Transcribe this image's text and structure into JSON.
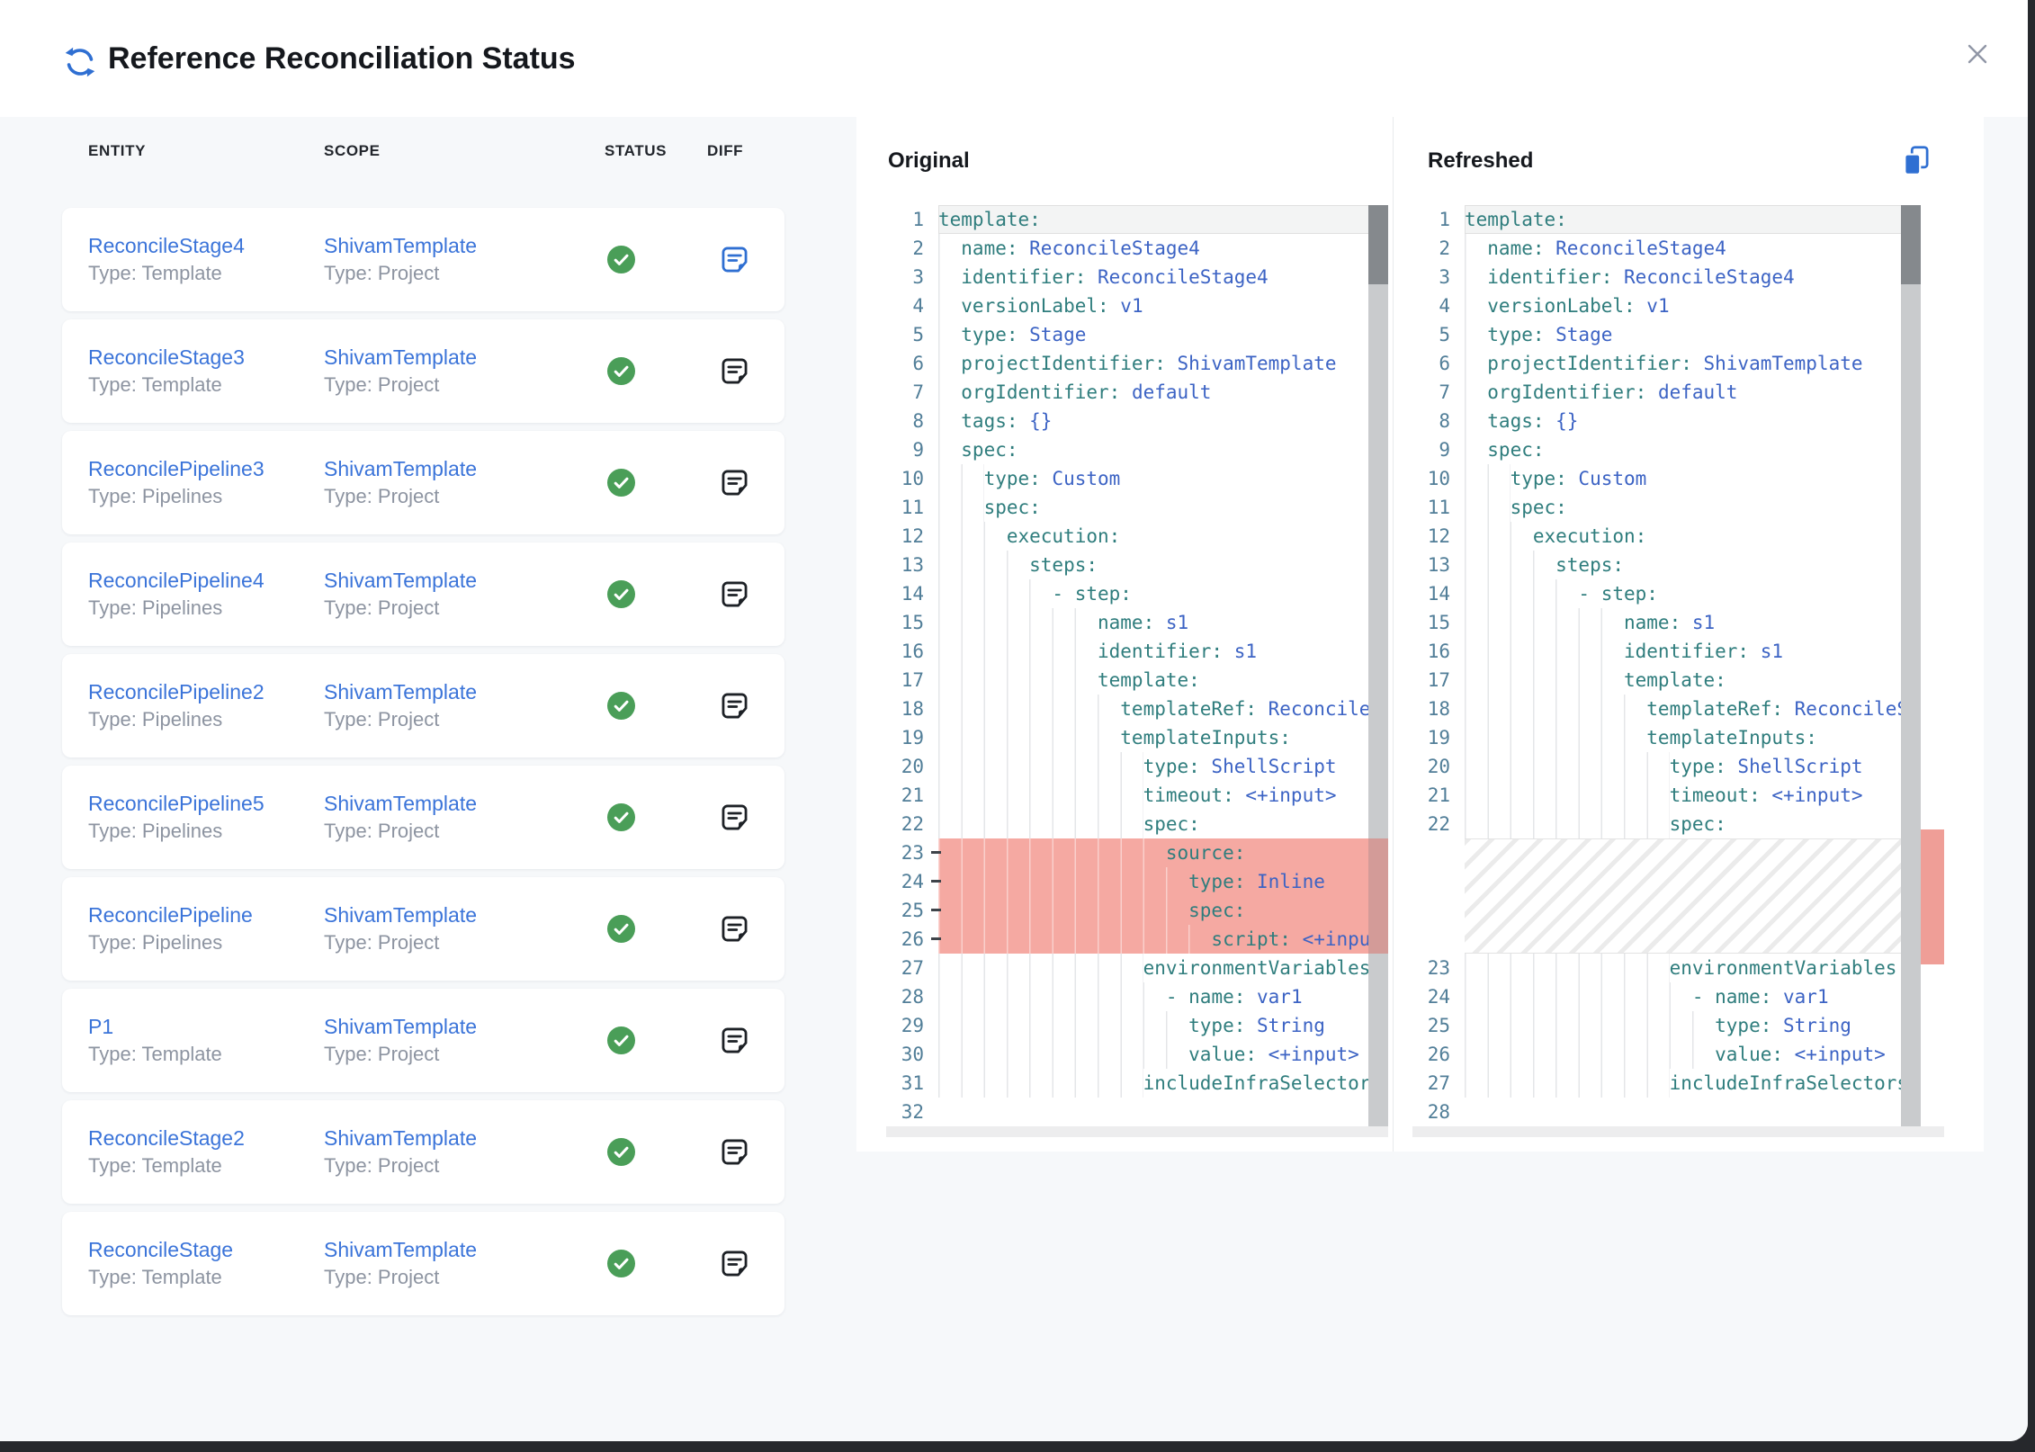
{
  "dialog": {
    "title": "Reference Reconciliation Status"
  },
  "icons": {
    "title_icon": "refresh-icon",
    "close": "close-icon",
    "status": "check-circle-icon",
    "diff": "note-icon",
    "copy": "copy-icon"
  },
  "colors": {
    "accent_blue": "#2f6fd2",
    "link_blue": "#3b74d9",
    "status_green": "#4a9e58",
    "removed_row_red": "#f5a9a2",
    "overview_marker_red": "#ef9e97",
    "yaml_key_teal": "#2f7d7d",
    "yaml_value_blue": "#3c63c4",
    "line_number": "#517e98"
  },
  "table": {
    "columns": [
      "ENTITY",
      "SCOPE",
      "STATUS",
      "DIFF"
    ],
    "rows": [
      {
        "entity": "ReconcileStage4",
        "entity_type": "Type: Template",
        "scope": "ShivamTemplate",
        "scope_type": "Type: Project",
        "status": "success",
        "diff_highlight": true
      },
      {
        "entity": "ReconcileStage3",
        "entity_type": "Type: Template",
        "scope": "ShivamTemplate",
        "scope_type": "Type: Project",
        "status": "success",
        "diff_highlight": false
      },
      {
        "entity": "ReconcilePipeline3",
        "entity_type": "Type: Pipelines",
        "scope": "ShivamTemplate",
        "scope_type": "Type: Project",
        "status": "success",
        "diff_highlight": false
      },
      {
        "entity": "ReconcilePipeline4",
        "entity_type": "Type: Pipelines",
        "scope": "ShivamTemplate",
        "scope_type": "Type: Project",
        "status": "success",
        "diff_highlight": false
      },
      {
        "entity": "ReconcilePipeline2",
        "entity_type": "Type: Pipelines",
        "scope": "ShivamTemplate",
        "scope_type": "Type: Project",
        "status": "success",
        "diff_highlight": false
      },
      {
        "entity": "ReconcilePipeline5",
        "entity_type": "Type: Pipelines",
        "scope": "ShivamTemplate",
        "scope_type": "Type: Project",
        "status": "success",
        "diff_highlight": false
      },
      {
        "entity": "ReconcilePipeline",
        "entity_type": "Type: Pipelines",
        "scope": "ShivamTemplate",
        "scope_type": "Type: Project",
        "status": "success",
        "diff_highlight": false
      },
      {
        "entity": "P1",
        "entity_type": "Type: Template",
        "scope": "ShivamTemplate",
        "scope_type": "Type: Project",
        "status": "success",
        "diff_highlight": false
      },
      {
        "entity": "ReconcileStage2",
        "entity_type": "Type: Template",
        "scope": "ShivamTemplate",
        "scope_type": "Type: Project",
        "status": "success",
        "diff_highlight": false
      },
      {
        "entity": "ReconcileStage",
        "entity_type": "Type: Template",
        "scope": "ShivamTemplate",
        "scope_type": "Type: Project",
        "status": "success",
        "diff_highlight": false
      }
    ]
  },
  "diff": {
    "original_title": "Original",
    "refreshed_title": "Refreshed",
    "original_lines": [
      {
        "n": 1,
        "i": 0,
        "k": "template"
      },
      {
        "n": 2,
        "i": 2,
        "k": "name",
        "v": "ReconcileStage4"
      },
      {
        "n": 3,
        "i": 2,
        "k": "identifier",
        "v": "ReconcileStage4"
      },
      {
        "n": 4,
        "i": 2,
        "k": "versionLabel",
        "v": "v1"
      },
      {
        "n": 5,
        "i": 2,
        "k": "type",
        "v": "Stage"
      },
      {
        "n": 6,
        "i": 2,
        "k": "projectIdentifier",
        "v": "ShivamTemplate"
      },
      {
        "n": 7,
        "i": 2,
        "k": "orgIdentifier",
        "v": "default"
      },
      {
        "n": 8,
        "i": 2,
        "k": "tags",
        "v": "{}"
      },
      {
        "n": 9,
        "i": 2,
        "k": "spec"
      },
      {
        "n": 10,
        "i": 4,
        "k": "type",
        "v": "Custom"
      },
      {
        "n": 11,
        "i": 4,
        "k": "spec"
      },
      {
        "n": 12,
        "i": 6,
        "k": "execution"
      },
      {
        "n": 13,
        "i": 8,
        "k": "steps"
      },
      {
        "n": 14,
        "i": 10,
        "p": "- ",
        "k": "step"
      },
      {
        "n": 15,
        "i": 14,
        "k": "name",
        "v": "s1"
      },
      {
        "n": 16,
        "i": 14,
        "k": "identifier",
        "v": "s1"
      },
      {
        "n": 17,
        "i": 14,
        "k": "template"
      },
      {
        "n": 18,
        "i": 16,
        "k": "templateRef",
        "v": "ReconcileSte"
      },
      {
        "n": 19,
        "i": 16,
        "k": "templateInputs"
      },
      {
        "n": 20,
        "i": 18,
        "k": "type",
        "v": "ShellScript"
      },
      {
        "n": 21,
        "i": 18,
        "k": "timeout",
        "v": "<+input>"
      },
      {
        "n": 22,
        "i": 18,
        "k": "spec"
      },
      {
        "n": 23,
        "i": 20,
        "k": "source",
        "rm": true
      },
      {
        "n": 24,
        "i": 22,
        "k": "type",
        "v": "Inline",
        "rm": true
      },
      {
        "n": 25,
        "i": 22,
        "k": "spec",
        "rm": true
      },
      {
        "n": 26,
        "i": 24,
        "k": "script",
        "v": "<+input>",
        "rm": true
      },
      {
        "n": 27,
        "i": 18,
        "k": "environmentVariables"
      },
      {
        "n": 28,
        "i": 20,
        "p": "- ",
        "k": "name",
        "v": "var1"
      },
      {
        "n": 29,
        "i": 22,
        "k": "type",
        "v": "String"
      },
      {
        "n": 30,
        "i": 22,
        "k": "value",
        "v": "<+input>"
      },
      {
        "n": 31,
        "i": 18,
        "k": "includeInfraSelectors"
      },
      {
        "n": 32,
        "blank": true
      }
    ],
    "refreshed_lines": [
      {
        "n": 1,
        "i": 0,
        "k": "template"
      },
      {
        "n": 2,
        "i": 2,
        "k": "name",
        "v": "ReconcileStage4"
      },
      {
        "n": 3,
        "i": 2,
        "k": "identifier",
        "v": "ReconcileStage4"
      },
      {
        "n": 4,
        "i": 2,
        "k": "versionLabel",
        "v": "v1"
      },
      {
        "n": 5,
        "i": 2,
        "k": "type",
        "v": "Stage"
      },
      {
        "n": 6,
        "i": 2,
        "k": "projectIdentifier",
        "v": "ShivamTemplate"
      },
      {
        "n": 7,
        "i": 2,
        "k": "orgIdentifier",
        "v": "default"
      },
      {
        "n": 8,
        "i": 2,
        "k": "tags",
        "v": "{}"
      },
      {
        "n": 9,
        "i": 2,
        "k": "spec"
      },
      {
        "n": 10,
        "i": 4,
        "k": "type",
        "v": "Custom"
      },
      {
        "n": 11,
        "i": 4,
        "k": "spec"
      },
      {
        "n": 12,
        "i": 6,
        "k": "execution"
      },
      {
        "n": 13,
        "i": 8,
        "k": "steps"
      },
      {
        "n": 14,
        "i": 10,
        "p": "- ",
        "k": "step"
      },
      {
        "n": 15,
        "i": 14,
        "k": "name",
        "v": "s1"
      },
      {
        "n": 16,
        "i": 14,
        "k": "identifier",
        "v": "s1"
      },
      {
        "n": 17,
        "i": 14,
        "k": "template"
      },
      {
        "n": 18,
        "i": 16,
        "k": "templateRef",
        "v": "ReconcileSte"
      },
      {
        "n": 19,
        "i": 16,
        "k": "templateInputs"
      },
      {
        "n": 20,
        "i": 18,
        "k": "type",
        "v": "ShellScript"
      },
      {
        "n": 21,
        "i": 18,
        "k": "timeout",
        "v": "<+input>"
      },
      {
        "n": 22,
        "i": 18,
        "k": "spec"
      },
      {
        "hatch": true
      },
      {
        "n": 23,
        "i": 18,
        "k": "environmentVariables"
      },
      {
        "n": 24,
        "i": 20,
        "p": "- ",
        "k": "name",
        "v": "var1"
      },
      {
        "n": 25,
        "i": 22,
        "k": "type",
        "v": "String"
      },
      {
        "n": 26,
        "i": 22,
        "k": "value",
        "v": "<+input>"
      },
      {
        "n": 27,
        "i": 18,
        "k": "includeInfraSelectors"
      },
      {
        "n": 28,
        "blank": true
      }
    ]
  }
}
